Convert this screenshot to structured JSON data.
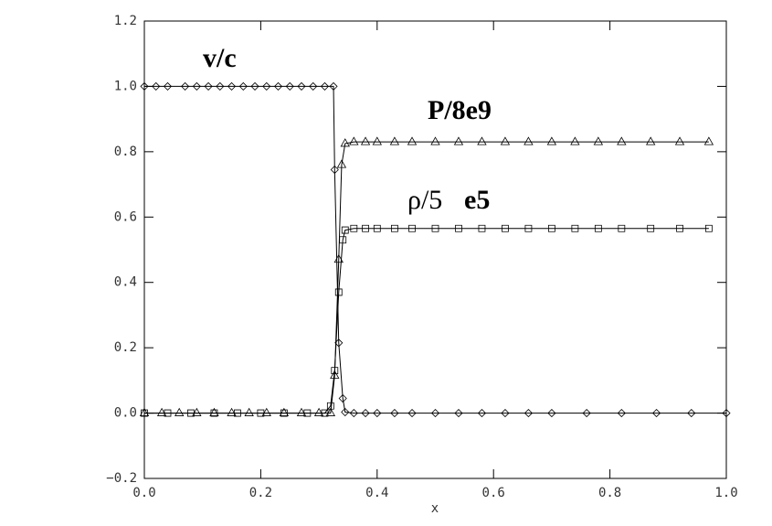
{
  "chart_data": {
    "type": "line",
    "xlabel": "x",
    "xlim": [
      0,
      1
    ],
    "ylim": [
      -0.2,
      1.2
    ],
    "xticks": [
      {
        "value": 0,
        "label": "0.0"
      },
      {
        "value": 0.2,
        "label": "0.2"
      },
      {
        "value": 0.4,
        "label": "0.4"
      },
      {
        "value": 0.6,
        "label": "0.6"
      },
      {
        "value": 0.8,
        "label": "0.8"
      },
      {
        "value": 1,
        "label": "1.0"
      }
    ],
    "yticks": [
      {
        "value": -0.2,
        "label": "−0.2"
      },
      {
        "value": 0,
        "label": "0.0"
      },
      {
        "value": 0.2,
        "label": "0.2"
      },
      {
        "value": 0.4,
        "label": "0.4"
      },
      {
        "value": 0.6,
        "label": "0.6"
      },
      {
        "value": 0.8,
        "label": "0.8"
      },
      {
        "value": 1,
        "label": "1.0"
      },
      {
        "value": 1.2,
        "label": "1.2"
      }
    ],
    "annotations": [
      {
        "text": "v/c"
      },
      {
        "text": "P/8e9"
      },
      {
        "text": "ρ/5"
      },
      {
        "text": "e5"
      }
    ],
    "series": [
      {
        "marker": "diamond",
        "color": "#000000",
        "x": [
          0,
          0.02,
          0.04,
          0.07,
          0.09,
          0.11,
          0.13,
          0.15,
          0.17,
          0.19,
          0.21,
          0.23,
          0.25,
          0.27,
          0.29,
          0.31,
          0.325,
          0.327,
          0.334,
          0.341,
          0.345,
          0.36,
          0.38,
          0.4,
          0.43,
          0.46,
          0.5,
          0.54,
          0.58,
          0.62,
          0.66,
          0.7,
          0.76,
          0.82,
          0.88,
          0.94,
          1.0
        ],
        "values": [
          1,
          1,
          1,
          1,
          1,
          1,
          1,
          1,
          1,
          1,
          1,
          1,
          1,
          1,
          1,
          1,
          1,
          0.745,
          0.215,
          0.045,
          0.003,
          0,
          0,
          0,
          0,
          0,
          0,
          0,
          0,
          0,
          0,
          0,
          0,
          0,
          0,
          0,
          0
        ]
      },
      {
        "marker": "triangle",
        "color": "#000000",
        "x": [
          0,
          0.03,
          0.06,
          0.09,
          0.12,
          0.15,
          0.18,
          0.21,
          0.24,
          0.27,
          0.3,
          0.32,
          0.327,
          0.334,
          0.339,
          0.345,
          0.36,
          0.38,
          0.4,
          0.43,
          0.46,
          0.5,
          0.54,
          0.58,
          0.62,
          0.66,
          0.7,
          0.74,
          0.78,
          0.82,
          0.87,
          0.92,
          0.97
        ],
        "values": [
          0,
          0,
          0,
          0,
          0,
          0,
          0,
          0,
          0,
          0,
          0,
          0,
          0.115,
          0.47,
          0.76,
          0.825,
          0.83,
          0.83,
          0.83,
          0.83,
          0.83,
          0.83,
          0.83,
          0.83,
          0.83,
          0.83,
          0.83,
          0.83,
          0.83,
          0.83,
          0.83,
          0.83,
          0.83
        ]
      },
      {
        "marker": "square",
        "color": "#000000",
        "x": [
          0,
          0.04,
          0.08,
          0.12,
          0.16,
          0.2,
          0.24,
          0.28,
          0.31,
          0.32,
          0.327,
          0.334,
          0.341,
          0.345,
          0.36,
          0.38,
          0.4,
          0.43,
          0.46,
          0.5,
          0.54,
          0.58,
          0.62,
          0.66,
          0.7,
          0.74,
          0.78,
          0.82,
          0.87,
          0.92,
          0.97
        ],
        "values": [
          0,
          0,
          0,
          0,
          0,
          0,
          0,
          0,
          0,
          0.022,
          0.13,
          0.37,
          0.53,
          0.56,
          0.565,
          0.565,
          0.565,
          0.565,
          0.565,
          0.565,
          0.565,
          0.565,
          0.565,
          0.565,
          0.565,
          0.565,
          0.565,
          0.565,
          0.565,
          0.565,
          0.565
        ]
      }
    ]
  }
}
